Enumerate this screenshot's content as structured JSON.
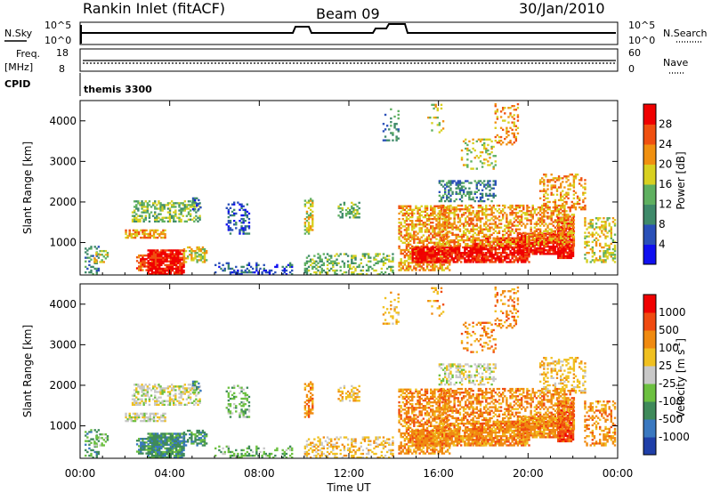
{
  "header": {
    "site": "Rankin Inlet (fitACF)",
    "beam": "Beam 09",
    "date": "30/Jan/2010"
  },
  "aux_panels": {
    "nsky_label": "N.Sky",
    "nsearch_label": "N.Search",
    "nsky_ticks": [
      "10^5",
      "10^0"
    ],
    "nsearch_ticks": [
      "10^5",
      "10^0"
    ],
    "freq_label": "Freq.",
    "freq_unit": "[MHz]",
    "freq_ticks": [
      "18",
      "8"
    ],
    "nave_label": "Nave",
    "nave_ticks": [
      "60",
      "0"
    ],
    "cpid_label": "CPID",
    "cpid_value": "themis 3300"
  },
  "chart_data": [
    {
      "type": "heatmap",
      "title": "",
      "xlabel": "",
      "ylabel": "Slant Range [km]",
      "x_ticks": [
        "00:00",
        "04:00",
        "08:00",
        "12:00",
        "16:00",
        "20:00",
        "00:00"
      ],
      "x_range_hours": [
        0,
        24
      ],
      "y_range_km": [
        200,
        4500
      ],
      "y_ticks": [
        1000,
        2000,
        3000,
        4000
      ],
      "colorbar": {
        "label": "Power [dB]",
        "ticks": [
          "4",
          "8",
          "12",
          "16",
          "20",
          "24",
          "28"
        ],
        "colors": [
          "#1010f0",
          "#2a50b8",
          "#3f8a6a",
          "#5fb060",
          "#d8d020",
          "#f09010",
          "#f05010",
          "#f00000"
        ]
      }
    },
    {
      "type": "heatmap",
      "title": "",
      "xlabel": "Time UT",
      "ylabel": "Slant Range [km]",
      "x_ticks": [
        "00:00",
        "04:00",
        "08:00",
        "12:00",
        "16:00",
        "20:00",
        "00:00"
      ],
      "x_range_hours": [
        0,
        24
      ],
      "y_range_km": [
        200,
        4500
      ],
      "y_ticks": [
        1000,
        2000,
        3000,
        4000
      ],
      "colorbar": {
        "label": "Velocity [m s^-1]",
        "ticks": [
          "1000",
          "500",
          "100",
          "25",
          "-25",
          "-100",
          "-500",
          "-1000"
        ],
        "colors": [
          "#1f3fa8",
          "#3a78c0",
          "#3f8a5a",
          "#6cc040",
          "#c8c8c8",
          "#f0c020",
          "#f08a10",
          "#f04a10",
          "#f00000"
        ]
      }
    }
  ]
}
